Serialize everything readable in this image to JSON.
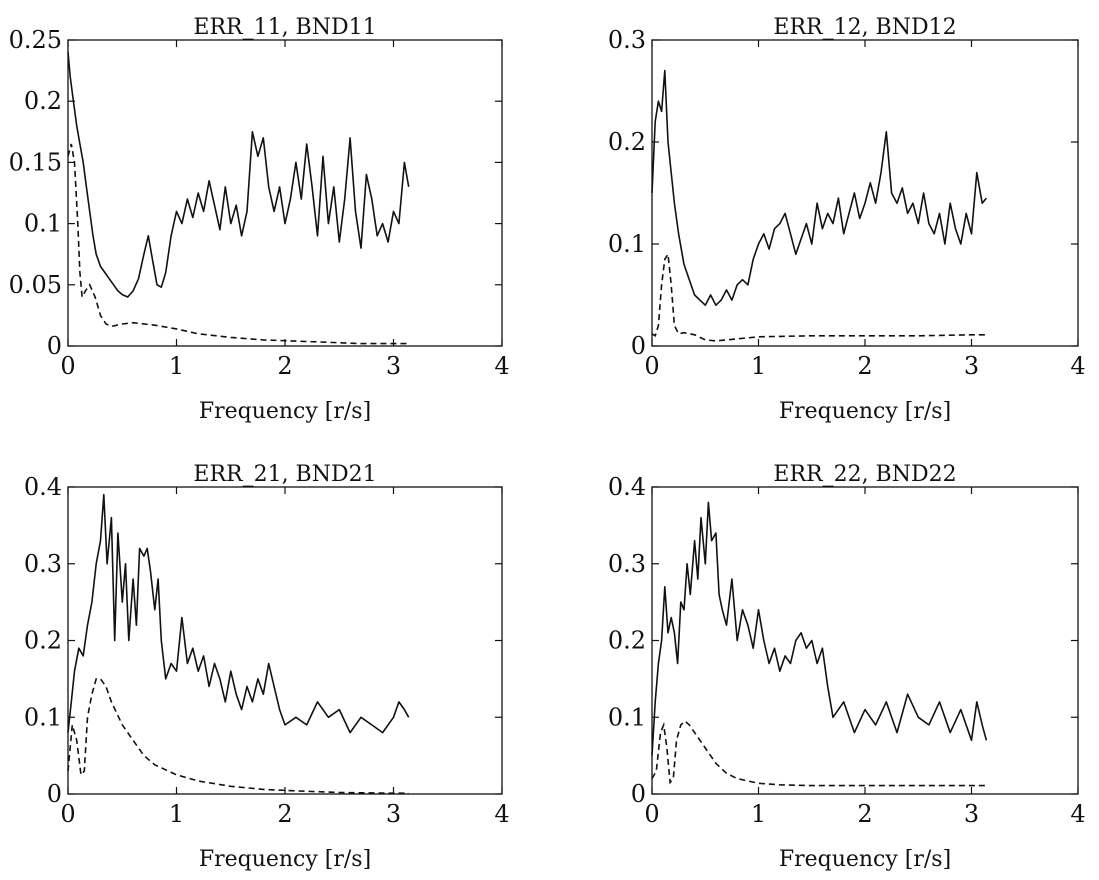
{
  "chart_data": [
    {
      "type": "line",
      "title": "ERR_11, BND11",
      "xlabel": "Frequency [r/s]",
      "ylabel": "",
      "xlim": [
        0,
        4
      ],
      "ylim": [
        0,
        0.25
      ],
      "xticks": [
        "0",
        "1",
        "2",
        "3",
        "4"
      ],
      "yticks": [
        "0",
        "0.05",
        "0.1",
        "0.15",
        "0.2",
        "0.25"
      ],
      "grid": false,
      "series": [
        {
          "style": "solid",
          "x": [
            0,
            0.02,
            0.05,
            0.08,
            0.11,
            0.14,
            0.17,
            0.2,
            0.23,
            0.26,
            0.3,
            0.34,
            0.38,
            0.42,
            0.46,
            0.5,
            0.55,
            0.6,
            0.65,
            0.7,
            0.74,
            0.78,
            0.82,
            0.86,
            0.9,
            0.95,
            1.0,
            1.05,
            1.1,
            1.15,
            1.2,
            1.25,
            1.3,
            1.35,
            1.4,
            1.45,
            1.5,
            1.55,
            1.6,
            1.65,
            1.7,
            1.75,
            1.8,
            1.85,
            1.9,
            1.95,
            2.0,
            2.05,
            2.1,
            2.15,
            2.2,
            2.25,
            2.3,
            2.35,
            2.4,
            2.45,
            2.5,
            2.55,
            2.6,
            2.65,
            2.7,
            2.75,
            2.8,
            2.85,
            2.9,
            2.95,
            3.0,
            3.05,
            3.1,
            3.14
          ],
          "y": [
            0.24,
            0.22,
            0.2,
            0.18,
            0.165,
            0.15,
            0.13,
            0.11,
            0.09,
            0.075,
            0.065,
            0.06,
            0.055,
            0.05,
            0.045,
            0.042,
            0.04,
            0.045,
            0.055,
            0.075,
            0.09,
            0.07,
            0.05,
            0.048,
            0.06,
            0.09,
            0.11,
            0.1,
            0.12,
            0.105,
            0.125,
            0.11,
            0.135,
            0.115,
            0.095,
            0.13,
            0.1,
            0.115,
            0.09,
            0.11,
            0.175,
            0.155,
            0.17,
            0.13,
            0.11,
            0.13,
            0.1,
            0.12,
            0.15,
            0.12,
            0.165,
            0.13,
            0.09,
            0.155,
            0.1,
            0.13,
            0.085,
            0.12,
            0.17,
            0.11,
            0.08,
            0.14,
            0.12,
            0.09,
            0.1,
            0.085,
            0.11,
            0.1,
            0.15,
            0.13
          ]
        },
        {
          "style": "dashed",
          "x": [
            0,
            0.03,
            0.06,
            0.09,
            0.11,
            0.13,
            0.16,
            0.2,
            0.25,
            0.3,
            0.35,
            0.4,
            0.5,
            0.6,
            0.8,
            1.0,
            1.2,
            1.5,
            1.8,
            2.1,
            2.4,
            2.7,
            3.0,
            3.14
          ],
          "y": [
            0.155,
            0.165,
            0.15,
            0.1,
            0.06,
            0.04,
            0.045,
            0.05,
            0.04,
            0.025,
            0.018,
            0.016,
            0.018,
            0.019,
            0.017,
            0.014,
            0.01,
            0.007,
            0.005,
            0.004,
            0.003,
            0.002,
            0.002,
            0.002
          ]
        }
      ]
    },
    {
      "type": "line",
      "title": "ERR_12, BND12",
      "xlabel": "Frequency [r/s]",
      "ylabel": "",
      "xlim": [
        0,
        4
      ],
      "ylim": [
        0,
        0.3
      ],
      "xticks": [
        "0",
        "1",
        "2",
        "3",
        "4"
      ],
      "yticks": [
        "0",
        "0.1",
        "0.2",
        "0.3"
      ],
      "grid": false,
      "series": [
        {
          "style": "solid",
          "x": [
            0,
            0.03,
            0.06,
            0.09,
            0.12,
            0.15,
            0.18,
            0.21,
            0.25,
            0.3,
            0.35,
            0.4,
            0.45,
            0.5,
            0.55,
            0.6,
            0.65,
            0.7,
            0.75,
            0.8,
            0.85,
            0.9,
            0.95,
            1.0,
            1.05,
            1.1,
            1.15,
            1.2,
            1.25,
            1.3,
            1.35,
            1.4,
            1.45,
            1.5,
            1.55,
            1.6,
            1.65,
            1.7,
            1.75,
            1.8,
            1.85,
            1.9,
            1.95,
            2.0,
            2.05,
            2.1,
            2.15,
            2.2,
            2.25,
            2.3,
            2.35,
            2.4,
            2.45,
            2.5,
            2.55,
            2.6,
            2.65,
            2.7,
            2.75,
            2.8,
            2.85,
            2.9,
            2.95,
            3.0,
            3.05,
            3.1,
            3.14
          ],
          "y": [
            0.15,
            0.22,
            0.24,
            0.23,
            0.27,
            0.2,
            0.17,
            0.14,
            0.11,
            0.08,
            0.065,
            0.05,
            0.045,
            0.04,
            0.05,
            0.04,
            0.045,
            0.055,
            0.045,
            0.06,
            0.065,
            0.06,
            0.085,
            0.1,
            0.11,
            0.095,
            0.115,
            0.12,
            0.13,
            0.11,
            0.09,
            0.105,
            0.12,
            0.1,
            0.14,
            0.115,
            0.13,
            0.12,
            0.145,
            0.11,
            0.13,
            0.15,
            0.125,
            0.14,
            0.16,
            0.14,
            0.17,
            0.21,
            0.15,
            0.14,
            0.155,
            0.13,
            0.14,
            0.12,
            0.15,
            0.12,
            0.11,
            0.13,
            0.1,
            0.14,
            0.115,
            0.1,
            0.13,
            0.11,
            0.17,
            0.14,
            0.145
          ]
        },
        {
          "style": "dashed",
          "x": [
            0,
            0.03,
            0.06,
            0.09,
            0.12,
            0.15,
            0.18,
            0.21,
            0.25,
            0.3,
            0.4,
            0.5,
            0.6,
            0.8,
            1.0,
            1.5,
            2.0,
            2.5,
            3.0,
            3.14
          ],
          "y": [
            0.012,
            0.01,
            0.02,
            0.06,
            0.085,
            0.09,
            0.06,
            0.02,
            0.012,
            0.013,
            0.011,
            0.006,
            0.005,
            0.007,
            0.009,
            0.01,
            0.01,
            0.01,
            0.011,
            0.011
          ]
        }
      ]
    },
    {
      "type": "line",
      "title": "ERR_21, BND21",
      "xlabel": "Frequency [r/s]",
      "ylabel": "",
      "xlim": [
        0,
        4
      ],
      "ylim": [
        0,
        0.4
      ],
      "xticks": [
        "0",
        "1",
        "2",
        "3",
        "4"
      ],
      "yticks": [
        "0",
        "0.1",
        "0.2",
        "0.3",
        "0.4"
      ],
      "grid": false,
      "series": [
        {
          "style": "solid",
          "x": [
            0,
            0.03,
            0.06,
            0.1,
            0.14,
            0.18,
            0.22,
            0.26,
            0.3,
            0.33,
            0.36,
            0.4,
            0.43,
            0.46,
            0.5,
            0.53,
            0.56,
            0.6,
            0.63,
            0.66,
            0.7,
            0.73,
            0.76,
            0.8,
            0.83,
            0.86,
            0.9,
            0.95,
            1.0,
            1.05,
            1.1,
            1.15,
            1.2,
            1.25,
            1.3,
            1.35,
            1.4,
            1.45,
            1.5,
            1.55,
            1.6,
            1.65,
            1.7,
            1.75,
            1.8,
            1.85,
            1.9,
            1.95,
            2.0,
            2.1,
            2.2,
            2.3,
            2.4,
            2.5,
            2.6,
            2.7,
            2.8,
            2.9,
            3.0,
            3.05,
            3.1,
            3.14
          ],
          "y": [
            0.08,
            0.12,
            0.16,
            0.19,
            0.18,
            0.22,
            0.25,
            0.3,
            0.33,
            0.39,
            0.3,
            0.36,
            0.2,
            0.34,
            0.25,
            0.3,
            0.2,
            0.28,
            0.22,
            0.32,
            0.31,
            0.32,
            0.29,
            0.24,
            0.28,
            0.2,
            0.15,
            0.17,
            0.16,
            0.23,
            0.17,
            0.19,
            0.16,
            0.18,
            0.14,
            0.17,
            0.15,
            0.12,
            0.16,
            0.13,
            0.11,
            0.14,
            0.12,
            0.15,
            0.13,
            0.17,
            0.14,
            0.11,
            0.09,
            0.1,
            0.09,
            0.12,
            0.1,
            0.11,
            0.08,
            0.1,
            0.09,
            0.08,
            0.1,
            0.12,
            0.11,
            0.1
          ]
        },
        {
          "style": "dashed",
          "x": [
            0,
            0.04,
            0.08,
            0.12,
            0.15,
            0.18,
            0.22,
            0.26,
            0.3,
            0.35,
            0.4,
            0.5,
            0.6,
            0.7,
            0.8,
            1.0,
            1.2,
            1.5,
            1.8,
            2.1,
            2.5,
            3.0,
            3.14
          ],
          "y": [
            0.03,
            0.09,
            0.07,
            0.025,
            0.03,
            0.1,
            0.13,
            0.15,
            0.15,
            0.14,
            0.12,
            0.09,
            0.07,
            0.05,
            0.038,
            0.025,
            0.017,
            0.01,
            0.006,
            0.004,
            0.002,
            0.001,
            0.001
          ]
        }
      ]
    },
    {
      "type": "line",
      "title": "ERR_22, BND22",
      "xlabel": "Frequency [r/s]",
      "ylabel": "",
      "xlim": [
        0,
        4
      ],
      "ylim": [
        0,
        0.4
      ],
      "xticks": [
        "0",
        "1",
        "2",
        "3",
        "4"
      ],
      "yticks": [
        "0",
        "0.1",
        "0.2",
        "0.3",
        "0.4"
      ],
      "grid": false,
      "series": [
        {
          "style": "solid",
          "x": [
            0,
            0.03,
            0.06,
            0.09,
            0.12,
            0.15,
            0.18,
            0.21,
            0.24,
            0.27,
            0.3,
            0.33,
            0.36,
            0.4,
            0.43,
            0.46,
            0.5,
            0.53,
            0.56,
            0.6,
            0.63,
            0.66,
            0.7,
            0.75,
            0.8,
            0.85,
            0.9,
            0.95,
            1.0,
            1.05,
            1.1,
            1.15,
            1.2,
            1.25,
            1.3,
            1.35,
            1.4,
            1.45,
            1.5,
            1.55,
            1.6,
            1.65,
            1.7,
            1.8,
            1.9,
            2.0,
            2.1,
            2.2,
            2.3,
            2.4,
            2.5,
            2.6,
            2.7,
            2.8,
            2.9,
            3.0,
            3.05,
            3.1,
            3.14
          ],
          "y": [
            0.05,
            0.12,
            0.17,
            0.2,
            0.27,
            0.21,
            0.23,
            0.21,
            0.17,
            0.25,
            0.24,
            0.3,
            0.26,
            0.33,
            0.28,
            0.36,
            0.3,
            0.38,
            0.33,
            0.34,
            0.26,
            0.24,
            0.22,
            0.28,
            0.2,
            0.24,
            0.22,
            0.19,
            0.24,
            0.2,
            0.17,
            0.19,
            0.16,
            0.18,
            0.17,
            0.2,
            0.21,
            0.19,
            0.2,
            0.17,
            0.19,
            0.14,
            0.1,
            0.12,
            0.08,
            0.11,
            0.09,
            0.12,
            0.08,
            0.13,
            0.1,
            0.09,
            0.12,
            0.08,
            0.11,
            0.07,
            0.12,
            0.09,
            0.07
          ]
        },
        {
          "style": "dashed",
          "x": [
            0,
            0.04,
            0.08,
            0.11,
            0.14,
            0.17,
            0.2,
            0.23,
            0.27,
            0.31,
            0.35,
            0.4,
            0.5,
            0.6,
            0.7,
            0.8,
            1.0,
            1.2,
            1.5,
            2.0,
            2.5,
            3.0,
            3.14
          ],
          "y": [
            0.02,
            0.03,
            0.08,
            0.09,
            0.06,
            0.015,
            0.02,
            0.07,
            0.09,
            0.095,
            0.09,
            0.08,
            0.06,
            0.04,
            0.027,
            0.02,
            0.014,
            0.012,
            0.011,
            0.011,
            0.011,
            0.011,
            0.011
          ]
        }
      ]
    }
  ]
}
